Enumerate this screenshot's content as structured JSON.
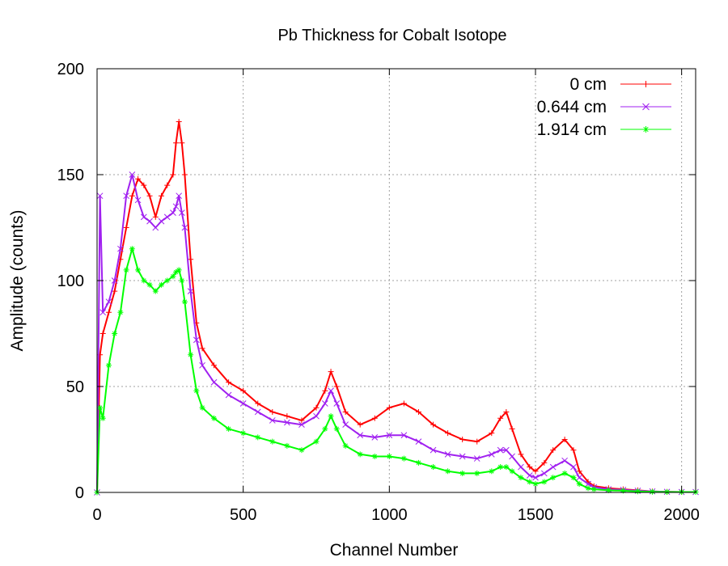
{
  "chart_data": {
    "type": "line",
    "title": "Pb Thickness for Cobalt Isotope",
    "xlabel": "Channel Number",
    "ylabel": "Amplitude (counts)",
    "xlim": [
      0,
      2048
    ],
    "ylim": [
      0,
      200
    ],
    "xticks": [
      0,
      500,
      1000,
      1500,
      2000
    ],
    "yticks": [
      0,
      50,
      100,
      150,
      200
    ],
    "grid": true,
    "legend_position": "top-right",
    "series": [
      {
        "name": "0 cm",
        "color": "#ff0000",
        "marker": "plus",
        "x": [
          0,
          10,
          20,
          40,
          60,
          80,
          100,
          120,
          140,
          160,
          180,
          200,
          220,
          240,
          260,
          270,
          280,
          290,
          300,
          320,
          340,
          360,
          400,
          450,
          500,
          550,
          600,
          650,
          700,
          750,
          780,
          800,
          820,
          850,
          900,
          950,
          1000,
          1050,
          1100,
          1150,
          1200,
          1250,
          1300,
          1350,
          1380,
          1400,
          1420,
          1450,
          1480,
          1500,
          1530,
          1560,
          1600,
          1630,
          1650,
          1680,
          1700,
          1750,
          1800,
          1850,
          1900,
          1950,
          2000,
          2048
        ],
        "y": [
          0,
          65,
          75,
          85,
          95,
          110,
          125,
          140,
          148,
          145,
          140,
          130,
          140,
          145,
          150,
          165,
          175,
          165,
          150,
          110,
          80,
          68,
          60,
          52,
          48,
          42,
          38,
          36,
          34,
          40,
          48,
          57,
          50,
          38,
          32,
          35,
          40,
          42,
          38,
          32,
          28,
          25,
          24,
          28,
          35,
          38,
          30,
          18,
          12,
          10,
          14,
          20,
          25,
          20,
          10,
          5,
          3,
          2,
          1.5,
          1,
          0.5,
          0.3,
          0.2,
          0.2
        ]
      },
      {
        "name": "0.644 cm",
        "color": "#a020f0",
        "marker": "cross",
        "x": [
          0,
          10,
          20,
          40,
          60,
          80,
          100,
          120,
          140,
          160,
          180,
          200,
          220,
          240,
          260,
          270,
          280,
          290,
          300,
          320,
          340,
          360,
          400,
          450,
          500,
          550,
          600,
          650,
          700,
          750,
          780,
          800,
          820,
          850,
          900,
          950,
          1000,
          1050,
          1100,
          1150,
          1200,
          1250,
          1300,
          1350,
          1380,
          1400,
          1420,
          1450,
          1480,
          1500,
          1530,
          1560,
          1600,
          1630,
          1650,
          1680,
          1700,
          1750,
          1800,
          1850,
          1900,
          1950,
          2000,
          2048
        ],
        "y": [
          0,
          140,
          85,
          90,
          100,
          115,
          140,
          150,
          138,
          130,
          128,
          125,
          128,
          130,
          132,
          135,
          140,
          132,
          125,
          95,
          72,
          60,
          52,
          46,
          42,
          38,
          34,
          33,
          32,
          36,
          42,
          48,
          42,
          32,
          27,
          26,
          27,
          27,
          24,
          20,
          18,
          17,
          16,
          18,
          20,
          20,
          17,
          12,
          8,
          7,
          9,
          12,
          15,
          12,
          7,
          4,
          2.5,
          1.5,
          1.2,
          0.8,
          0.5,
          0.3,
          0.2,
          0.2
        ]
      },
      {
        "name": "1.914 cm",
        "color": "#00ff00",
        "marker": "star",
        "x": [
          0,
          10,
          20,
          40,
          60,
          80,
          100,
          120,
          140,
          160,
          180,
          200,
          220,
          240,
          260,
          270,
          280,
          290,
          300,
          320,
          340,
          360,
          400,
          450,
          500,
          550,
          600,
          650,
          700,
          750,
          780,
          800,
          820,
          850,
          900,
          950,
          1000,
          1050,
          1100,
          1150,
          1200,
          1250,
          1300,
          1350,
          1380,
          1400,
          1420,
          1450,
          1480,
          1500,
          1530,
          1560,
          1600,
          1630,
          1650,
          1680,
          1700,
          1750,
          1800,
          1850,
          1900,
          1950,
          2000,
          2048
        ],
        "y": [
          0,
          40,
          35,
          60,
          75,
          85,
          105,
          115,
          105,
          100,
          98,
          95,
          98,
          100,
          102,
          104,
          105,
          100,
          90,
          65,
          48,
          40,
          35,
          30,
          28,
          26,
          24,
          22,
          20,
          24,
          30,
          36,
          30,
          22,
          18,
          17,
          17,
          16,
          14,
          12,
          10,
          9,
          9,
          10,
          12,
          12,
          10,
          7,
          5,
          4,
          5,
          7,
          9,
          7,
          4,
          2,
          1.5,
          1,
          0.8,
          0.5,
          0.3,
          0.2,
          0.2,
          0.2
        ]
      }
    ]
  }
}
